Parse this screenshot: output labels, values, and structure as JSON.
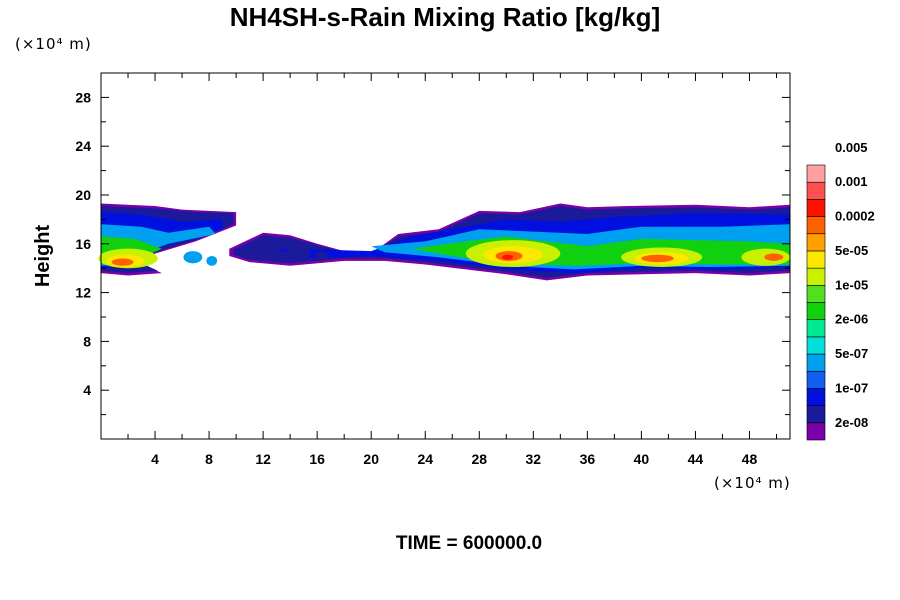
{
  "chart_data": {
    "type": "heatmap",
    "title": "NH4SH-s-Rain Mixing Ratio [kg/kg]",
    "ylabel": "Height",
    "x_unit": "(×10⁴ m)",
    "y_unit": "(×10⁴ m)",
    "xlim": [
      0,
      51
    ],
    "ylim": [
      0,
      30
    ],
    "x_ticks": [
      4,
      8,
      12,
      16,
      20,
      24,
      28,
      32,
      36,
      40,
      44,
      48
    ],
    "y_ticks": [
      4,
      8,
      12,
      16,
      20,
      24,
      28
    ],
    "colorbar": {
      "levels": [
        "2e-08",
        "1e-07",
        "5e-07",
        "2e-06",
        "1e-05",
        "5e-05",
        "0.0002",
        "0.001",
        "0.005"
      ],
      "colors": [
        "#7a00a8",
        "#1a1a9a",
        "#0010e0",
        "#1060f0",
        "#00a0f0",
        "#00e0d8",
        "#00e890",
        "#10d010",
        "#50e020",
        "#c8f000",
        "#ffe800",
        "#ffa000",
        "#ff6000",
        "#ff1000",
        "#ff5050",
        "#ffa0a0"
      ]
    },
    "approx_band": {
      "y_range": [
        13.5,
        19.3
      ],
      "core_x_ranges": [
        [
          0,
          4
        ],
        [
          28,
          36
        ],
        [
          38,
          46
        ],
        [
          48,
          51
        ]
      ]
    },
    "footer": "TIME = 600000.0"
  }
}
